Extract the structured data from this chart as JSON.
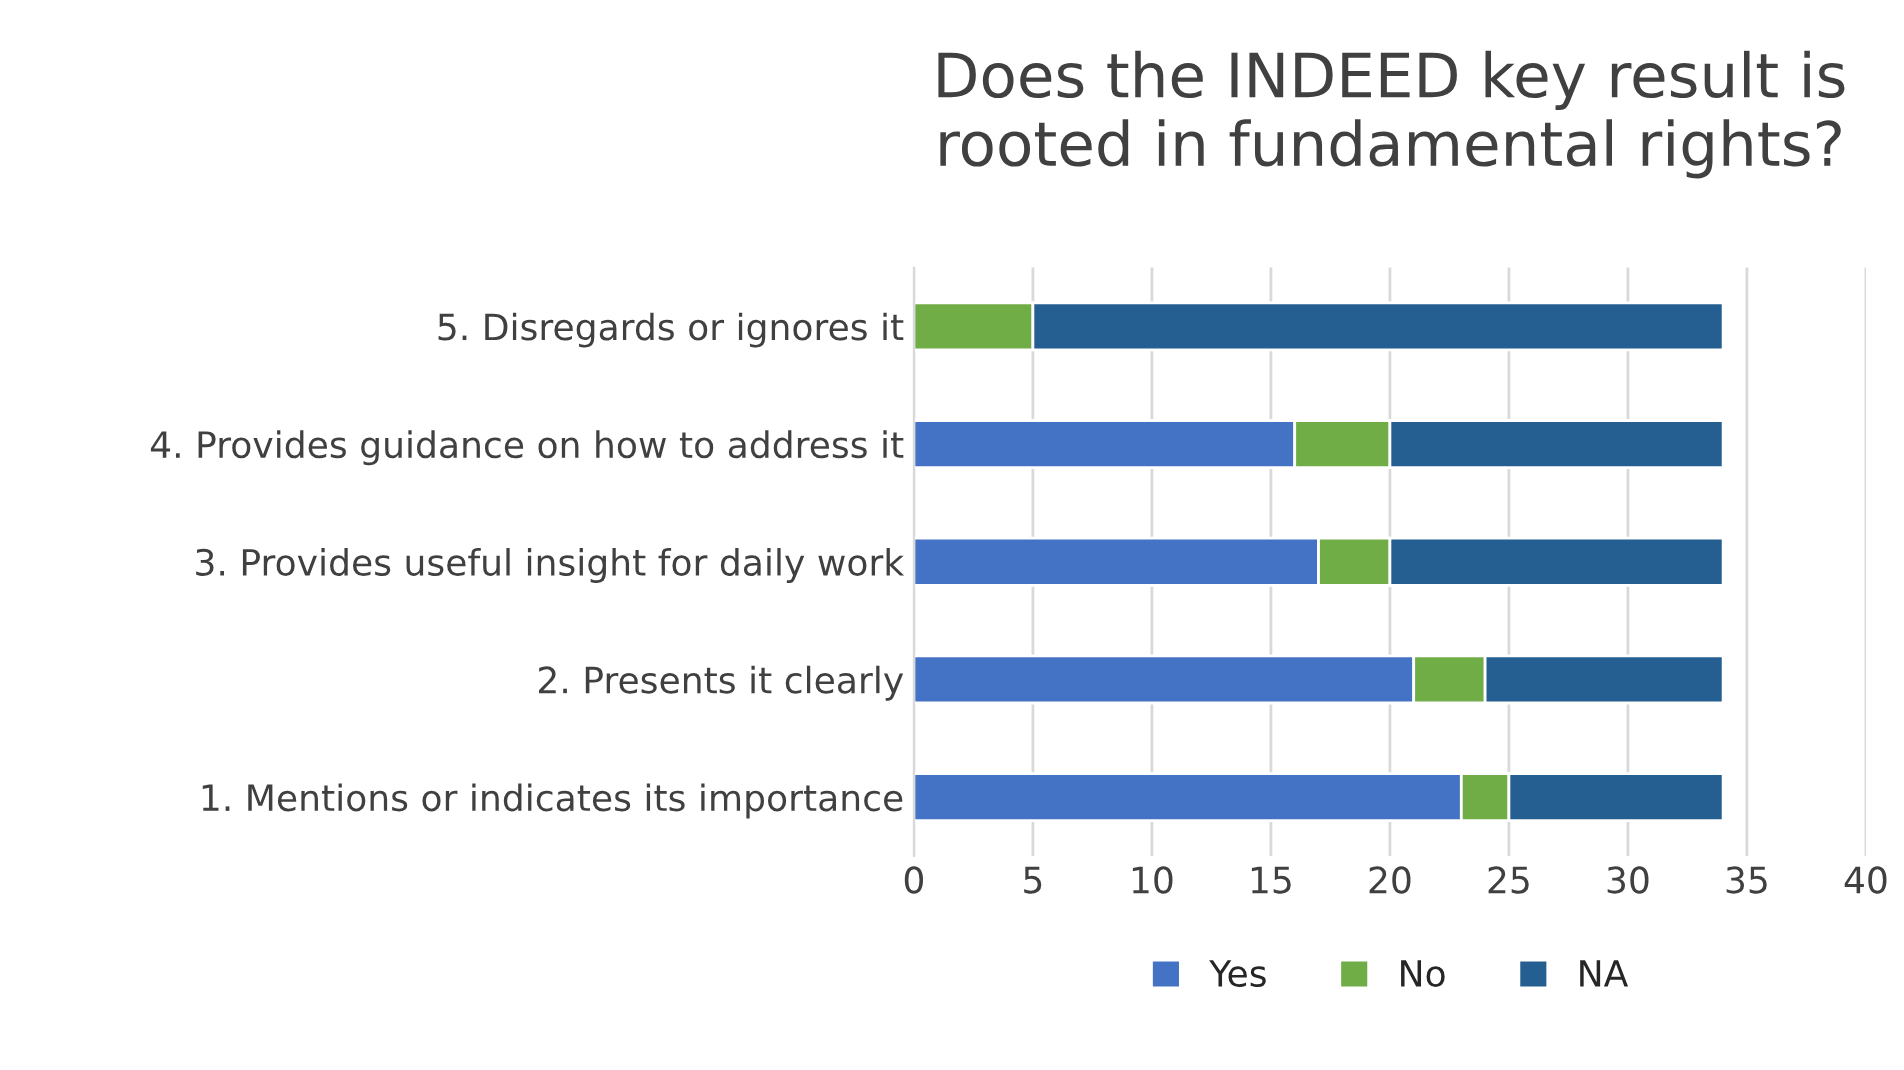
{
  "chart_data": {
    "type": "bar",
    "orientation": "horizontal",
    "stacked": true,
    "title": "Does the INDEED key result is rooted in fundamental rights?",
    "categories": [
      "5. Disregards or ignores it",
      "4. Provides guidance on how to address it",
      "3. Provides useful insight for daily work",
      "2. Presents it clearly",
      "1. Mentions or indicates its importance"
    ],
    "series": [
      {
        "name": "Yes",
        "color": "#4472c4",
        "values": [
          0,
          16,
          17,
          21,
          23
        ]
      },
      {
        "name": "No",
        "color": "#70ad47",
        "values": [
          5,
          4,
          3,
          3,
          2
        ]
      },
      {
        "name": "NA",
        "color": "#255e91",
        "values": [
          29,
          14,
          14,
          10,
          9
        ]
      }
    ],
    "xlim": [
      0,
      40
    ],
    "xticks": [
      0,
      5,
      10,
      15,
      20,
      25,
      30,
      35,
      40
    ],
    "grid": "x",
    "legend": "bottom"
  }
}
